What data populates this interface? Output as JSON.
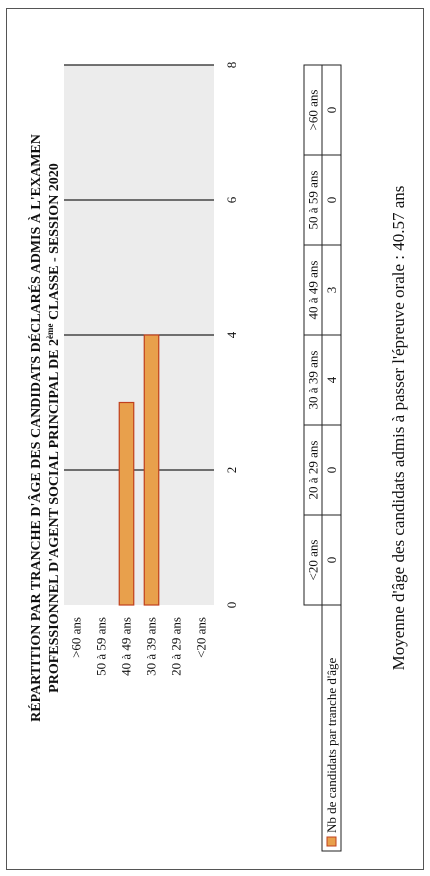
{
  "chart_data": {
    "type": "bar",
    "orientation": "horizontal",
    "title_line1": "RÉPARTITION PAR TRANCHE D'ÂGE DES CANDIDATS DÉCLARÉS ADMIS À L'EXAMEN",
    "title_line2_pre": "PROFESSIONNEL D'AGENT SOCIAL PRINCIPAL DE 2",
    "title_line2_sup": "ème",
    "title_line2_post": " CLASSE - SESSION 2020",
    "categories": [
      ">60 ans",
      "50 à 59 ans",
      "40 à 49 ans",
      "30 à 39 ans",
      "20 à 29 ans",
      "<20 ans"
    ],
    "series": [
      {
        "name": "Nb de candidats par tranche d'âge",
        "values": [
          0,
          0,
          3,
          4,
          0,
          0
        ]
      }
    ],
    "xlim": [
      0,
      8
    ],
    "x_ticks": [
      "0",
      "2",
      "4",
      "6",
      "8"
    ],
    "grid": true,
    "bar_color": "#e8a04c",
    "bar_border_color": "#c0401e",
    "plot_background": "#ececec",
    "table": {
      "columns": [
        "<20 ans",
        "20 à 29 ans",
        "30 à 39 ans",
        "40 à 49 ans",
        "50 à 59 ans",
        ">60 ans"
      ],
      "values": [
        "0",
        "0",
        "4",
        "3",
        "0",
        "0"
      ]
    },
    "legend_position": "bottom-left"
  },
  "footer": {
    "average_text": "Moyenne d'âge des candidats admis à passer l'épreuve orale : 40.57 ans"
  }
}
